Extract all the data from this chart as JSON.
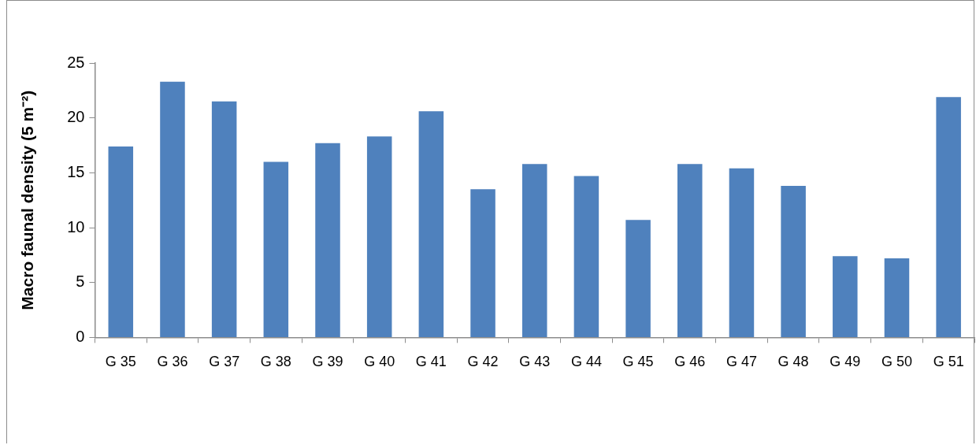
{
  "chart_data": {
    "type": "bar",
    "ylabel": "Macro faunal density (5 m⁻²)",
    "categories": [
      "G 35",
      "G 36",
      "G 37",
      "G 38",
      "G 39",
      "G 40",
      "G 41",
      "G 42",
      "G 43",
      "G 44",
      "G 45",
      "G 46",
      "G 47",
      "G 48",
      "G 49",
      "G 50",
      "G 51"
    ],
    "values": [
      17.4,
      23.3,
      21.5,
      16.0,
      17.7,
      18.3,
      20.6,
      13.5,
      15.8,
      14.7,
      10.7,
      15.8,
      15.4,
      13.8,
      7.4,
      7.2,
      21.9
    ],
    "color": "#4f81bd",
    "ylim": [
      0,
      25
    ],
    "yticks": [
      0,
      5,
      10,
      15,
      20,
      25
    ],
    "grid": false,
    "legend": false
  }
}
